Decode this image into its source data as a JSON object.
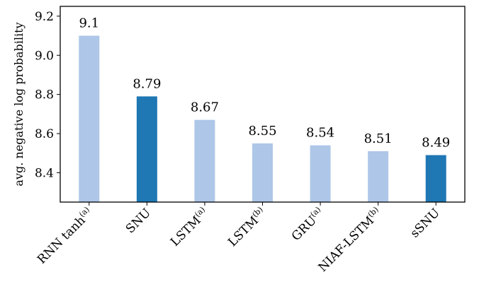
{
  "chart_data": {
    "type": "bar",
    "categories": [
      {
        "base": "RNN tanh",
        "sup": "(a)"
      },
      {
        "base": "SNU",
        "sup": ""
      },
      {
        "base": "LSTM",
        "sup": "(a)"
      },
      {
        "base": "LSTM",
        "sup": "(b)"
      },
      {
        "base": "GRU",
        "sup": "(a)"
      },
      {
        "base": "NIAF-LSTM",
        "sup": "(b)"
      },
      {
        "base": "sSNU",
        "sup": ""
      }
    ],
    "values": [
      9.1,
      8.79,
      8.67,
      8.55,
      8.54,
      8.51,
      8.49
    ],
    "value_labels": [
      "9.1",
      "8.79",
      "8.67",
      "8.55",
      "8.54",
      "8.51",
      "8.49"
    ],
    "highlight": [
      false,
      true,
      false,
      false,
      false,
      false,
      true
    ],
    "colors": {
      "normal": "#aec7e8",
      "highlight": "#1f77b4"
    },
    "ylabel": "avg. negative log probability",
    "ylim": [
      8.25,
      9.25
    ],
    "yticks": [
      8.4,
      8.6,
      8.8,
      9.0,
      9.2
    ],
    "ytick_labels": [
      "8.4",
      "8.6",
      "8.8",
      "9.0",
      "9.2"
    ],
    "grid": false
  }
}
